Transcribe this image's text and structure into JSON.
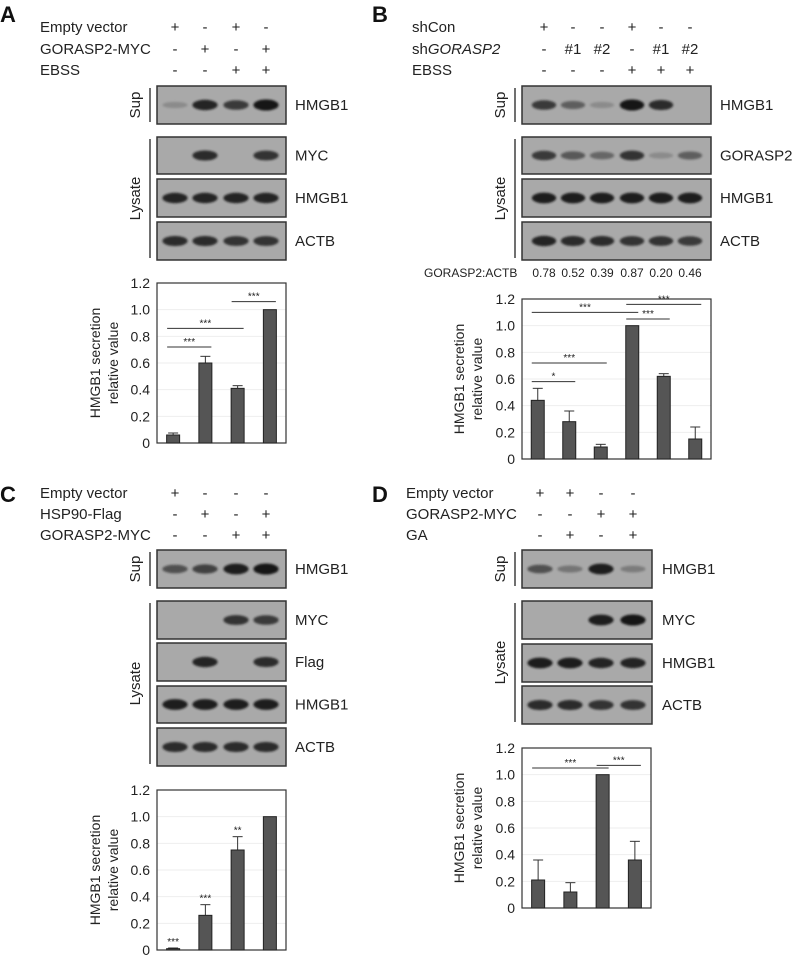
{
  "panels": [
    {
      "letter": "A",
      "conditions": [
        {
          "label": "Empty vector",
          "values": [
            "+",
            "-",
            "+",
            "-"
          ]
        },
        {
          "label": "GORASP2-MYC",
          "values": [
            "-",
            "+",
            "-",
            "+"
          ]
        },
        {
          "label": "EBSS",
          "values": [
            "-",
            "-",
            "+",
            "+"
          ]
        }
      ],
      "sup_label": "Sup",
      "lysate_label": "Lysate",
      "blots": [
        {
          "group": "Sup",
          "protein": "HMGB1",
          "band_intensity": [
            0.2,
            0.9,
            0.75,
            1.0
          ]
        },
        {
          "group": "Lysate",
          "protein": "MYC",
          "band_intensity": [
            0,
            0.85,
            0,
            0.8
          ]
        },
        {
          "group": "Lysate",
          "protein": "HMGB1",
          "band_intensity": [
            0.9,
            0.9,
            0.9,
            0.9
          ]
        },
        {
          "group": "Lysate",
          "protein": "ACTB",
          "band_intensity": [
            0.85,
            0.85,
            0.8,
            0.8
          ]
        }
      ]
    },
    {
      "letter": "B",
      "conditions": [
        {
          "label": "shCon",
          "values": [
            "+",
            "-",
            "-",
            "+",
            "-",
            "-"
          ]
        },
        {
          "label": "shGORASP2",
          "label_prefix": "sh",
          "label_italic": "GORASP2",
          "values": [
            "-",
            "#1",
            "#2",
            "-",
            "#1",
            "#2"
          ]
        },
        {
          "label": "EBSS",
          "values": [
            "-",
            "-",
            "-",
            "+",
            "+",
            "+"
          ]
        }
      ],
      "sup_label": "Sup",
      "lysate_label": "Lysate",
      "blots": [
        {
          "group": "Sup",
          "protein": "HMGB1",
          "band_intensity": [
            0.75,
            0.5,
            0.2,
            1.0,
            0.85,
            0
          ]
        },
        {
          "group": "Lysate",
          "protein": "GORASP2",
          "band_intensity": [
            0.75,
            0.55,
            0.45,
            0.8,
            0.2,
            0.5
          ]
        },
        {
          "group": "Lysate",
          "protein": "HMGB1",
          "band_intensity": [
            0.95,
            0.95,
            0.95,
            0.95,
            0.95,
            0.95
          ]
        },
        {
          "group": "Lysate",
          "protein": "ACTB",
          "band_intensity": [
            0.9,
            0.85,
            0.85,
            0.8,
            0.8,
            0.75
          ]
        }
      ],
      "ratio": {
        "label": "GORASP2:ACTB",
        "values": [
          "0.78",
          "0.52",
          "0.39",
          "0.87",
          "0.20",
          "0.46"
        ]
      }
    },
    {
      "letter": "C",
      "conditions": [
        {
          "label": "Empty vector",
          "values": [
            "+",
            "-",
            "-",
            "-"
          ]
        },
        {
          "label": "HSP90-Flag",
          "values": [
            "-",
            "+",
            "-",
            "+"
          ]
        },
        {
          "label": "GORASP2-MYC",
          "values": [
            "-",
            "-",
            "+",
            "+"
          ]
        }
      ],
      "sup_label": "Sup",
      "lysate_label": "Lysate",
      "blots": [
        {
          "group": "Sup",
          "protein": "HMGB1",
          "band_intensity": [
            0.6,
            0.7,
            0.95,
            1.0
          ]
        },
        {
          "group": "Lysate",
          "protein": "MYC",
          "band_intensity": [
            0,
            0,
            0.8,
            0.75
          ]
        },
        {
          "group": "Lysate",
          "protein": "Flag",
          "band_intensity": [
            0,
            0.9,
            0,
            0.85
          ]
        },
        {
          "group": "Lysate",
          "protein": "HMGB1",
          "band_intensity": [
            0.95,
            0.95,
            0.95,
            0.95
          ]
        },
        {
          "group": "Lysate",
          "protein": "ACTB",
          "band_intensity": [
            0.85,
            0.85,
            0.85,
            0.85
          ]
        }
      ]
    },
    {
      "letter": "D",
      "conditions": [
        {
          "label": "Empty vector",
          "values": [
            "+",
            "+",
            "-",
            "-"
          ]
        },
        {
          "label": "GORASP2-MYC",
          "values": [
            "-",
            "-",
            "+",
            "+"
          ]
        },
        {
          "label": "GA",
          "values": [
            "-",
            "+",
            "-",
            "+"
          ]
        }
      ],
      "sup_label": "Sup",
      "lysate_label": "Lysate",
      "blots": [
        {
          "group": "Sup",
          "protein": "HMGB1",
          "band_intensity": [
            0.6,
            0.35,
            0.95,
            0.3
          ]
        },
        {
          "group": "Lysate",
          "protein": "MYC",
          "band_intensity": [
            0,
            0,
            0.95,
            1.0
          ]
        },
        {
          "group": "Lysate",
          "protein": "HMGB1",
          "band_intensity": [
            0.95,
            0.95,
            0.9,
            0.9
          ]
        },
        {
          "group": "Lysate",
          "protein": "ACTB",
          "band_intensity": [
            0.85,
            0.85,
            0.8,
            0.8
          ]
        }
      ]
    }
  ],
  "chart_data": [
    {
      "panel": "A",
      "type": "bar",
      "ylabel": [
        "HMGB1 secretion",
        "relative value"
      ],
      "ylim": [
        0,
        1.2
      ],
      "yticks": [
        "0",
        "0.2",
        "0.4",
        "0.6",
        "0.8",
        "1.0",
        "1.2"
      ],
      "grid": true,
      "bar_color": "#555555",
      "values": [
        0.06,
        0.6,
        0.41,
        1.0
      ],
      "errors": [
        0.015,
        0.05,
        0.02,
        0
      ],
      "significance": [
        {
          "from": 1,
          "to": 2,
          "label": "***",
          "level": 0.72
        },
        {
          "from": 1,
          "to": 3,
          "label": "***",
          "level": 0.86
        },
        {
          "from": 3,
          "to": 4,
          "label": "***",
          "level": 1.06
        }
      ],
      "bar_labels": []
    },
    {
      "panel": "B",
      "type": "bar",
      "ylabel": [
        "HMGB1 secretion",
        "relative value"
      ],
      "ylim": [
        0,
        1.2
      ],
      "yticks": [
        "0",
        "0.2",
        "0.4",
        "0.6",
        "0.8",
        "1.0",
        "1.2"
      ],
      "grid": true,
      "bar_color": "#555555",
      "values": [
        0.44,
        0.28,
        0.09,
        1.0,
        0.62,
        0.15
      ],
      "errors": [
        0.09,
        0.08,
        0.02,
        0,
        0.02,
        0.09
      ],
      "significance": [
        {
          "from": 1,
          "to": 2,
          "label": "*",
          "level": 0.58
        },
        {
          "from": 1,
          "to": 3,
          "label": "***",
          "level": 0.72
        },
        {
          "from": 1,
          "to": 4,
          "label": "***",
          "level": 1.1
        },
        {
          "from": 4,
          "to": 5,
          "label": "***",
          "level": 1.05
        },
        {
          "from": 4,
          "to": 6,
          "label": "***",
          "level": 1.16
        }
      ],
      "bar_labels": []
    },
    {
      "panel": "C",
      "type": "bar",
      "ylabel": [
        "HMGB1 secretion",
        "relative value"
      ],
      "ylim": [
        0,
        1.2
      ],
      "yticks": [
        "0",
        "0.2",
        "0.4",
        "0.6",
        "0.8",
        "1.0",
        "1.2"
      ],
      "grid": true,
      "bar_color": "#555555",
      "values": [
        0.01,
        0.26,
        0.75,
        1.0
      ],
      "errors": [
        0.005,
        0.08,
        0.1,
        0
      ],
      "significance": [],
      "bar_labels": [
        "***",
        "***",
        "**",
        ""
      ]
    },
    {
      "panel": "D",
      "type": "bar",
      "ylabel": [
        "HMGB1 secretion",
        "relative value"
      ],
      "ylim": [
        0,
        1.2
      ],
      "yticks": [
        "0",
        "0.2",
        "0.4",
        "0.6",
        "0.8",
        "1.0",
        "1.2"
      ],
      "grid": true,
      "bar_color": "#555555",
      "values": [
        0.21,
        0.12,
        1.0,
        0.36
      ],
      "errors": [
        0.15,
        0.07,
        0,
        0.14
      ],
      "significance": [
        {
          "from": 1,
          "to": 3,
          "label": "***",
          "level": 1.05
        },
        {
          "from": 3,
          "to": 4,
          "label": "***",
          "level": 1.07
        }
      ],
      "bar_labels": []
    }
  ]
}
